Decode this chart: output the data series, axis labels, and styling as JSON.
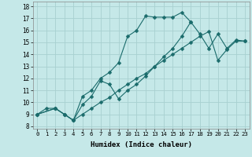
{
  "xlabel": "Humidex (Indice chaleur)",
  "xlim": [
    -0.5,
    23.5
  ],
  "ylim": [
    7.8,
    18.4
  ],
  "xticks": [
    0,
    1,
    2,
    3,
    4,
    5,
    6,
    7,
    8,
    9,
    10,
    11,
    12,
    13,
    14,
    15,
    16,
    17,
    18,
    19,
    20,
    21,
    22,
    23
  ],
  "yticks": [
    8,
    9,
    10,
    11,
    12,
    13,
    14,
    15,
    16,
    17,
    18
  ],
  "bg_color": "#c5e8e8",
  "grid_color": "#a8d0d0",
  "line_color": "#1a6b6b",
  "line1_x": [
    0,
    2,
    3,
    4,
    5,
    6,
    7,
    8,
    9,
    10,
    11,
    12,
    13,
    14,
    15,
    16,
    17
  ],
  "line1_y": [
    9.0,
    9.5,
    9.0,
    8.5,
    10.5,
    11.0,
    12.0,
    12.5,
    13.3,
    15.5,
    16.0,
    17.2,
    17.1,
    17.1,
    17.1,
    17.5,
    16.7
  ],
  "line2_x": [
    0,
    2,
    3,
    4,
    5,
    6,
    7,
    8,
    9,
    10,
    11,
    12,
    13,
    14,
    15,
    16,
    17,
    18,
    19,
    20,
    21,
    22,
    23
  ],
  "line2_y": [
    9.0,
    9.5,
    9.0,
    8.5,
    9.8,
    10.5,
    11.8,
    11.5,
    10.3,
    11.0,
    11.5,
    12.2,
    13.0,
    13.8,
    14.5,
    15.5,
    16.7,
    15.7,
    14.5,
    15.7,
    14.5,
    15.2,
    15.1
  ],
  "line3_x": [
    0,
    1,
    2,
    3,
    4,
    5,
    6,
    7,
    8,
    9,
    10,
    11,
    12,
    13,
    14,
    15,
    16,
    17,
    18,
    19,
    20,
    21,
    22,
    23
  ],
  "line3_y": [
    9.0,
    9.5,
    9.5,
    9.0,
    8.5,
    9.0,
    9.5,
    10.0,
    10.4,
    11.0,
    11.5,
    12.0,
    12.4,
    13.0,
    13.5,
    14.0,
    14.5,
    15.0,
    15.5,
    15.9,
    13.5,
    14.4,
    15.1,
    15.1
  ]
}
